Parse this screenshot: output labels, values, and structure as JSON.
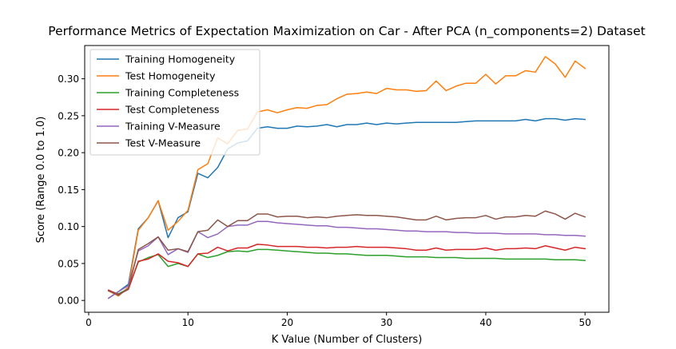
{
  "chart_data": {
    "type": "line",
    "title": "Performance Metrics of Expectation Maximization on Car - After PCA (n_components=2) Dataset",
    "xlabel": "K Value (Number of Clusters)",
    "ylabel": "Score (Range 0.0 to 1.0)",
    "xlim": [
      -0.4,
      52.4
    ],
    "ylim": [
      -0.016,
      0.345
    ],
    "x_ticks": [
      0,
      10,
      20,
      30,
      40,
      50
    ],
    "x_tick_labels": [
      "0",
      "10",
      "20",
      "30",
      "40",
      "50"
    ],
    "y_ticks": [
      0.0,
      0.05,
      0.1,
      0.15,
      0.2,
      0.25,
      0.3
    ],
    "y_tick_labels": [
      "0.00",
      "0.05",
      "0.10",
      "0.15",
      "0.20",
      "0.25",
      "0.30"
    ],
    "grid": false,
    "legend_position": "top-left",
    "x": [
      2,
      3,
      4,
      5,
      6,
      7,
      8,
      9,
      10,
      11,
      12,
      13,
      14,
      15,
      16,
      17,
      18,
      19,
      20,
      21,
      22,
      23,
      24,
      25,
      26,
      27,
      28,
      29,
      30,
      31,
      32,
      33,
      34,
      35,
      36,
      37,
      38,
      39,
      40,
      41,
      42,
      43,
      44,
      45,
      46,
      47,
      48,
      49,
      50
    ],
    "series": [
      {
        "name": "Training Homogeneity",
        "color": "#1f77b4",
        "values": [
          0.003,
          0.012,
          0.022,
          0.097,
          0.112,
          0.135,
          0.085,
          0.112,
          0.12,
          0.172,
          0.166,
          0.18,
          0.205,
          0.213,
          0.216,
          0.233,
          0.235,
          0.233,
          0.233,
          0.236,
          0.235,
          0.236,
          0.238,
          0.235,
          0.238,
          0.238,
          0.24,
          0.238,
          0.24,
          0.239,
          0.24,
          0.241,
          0.241,
          0.241,
          0.241,
          0.241,
          0.242,
          0.243,
          0.243,
          0.243,
          0.243,
          0.243,
          0.245,
          0.243,
          0.246,
          0.246,
          0.244,
          0.246,
          0.245
        ]
      },
      {
        "name": "Test Homogeneity",
        "color": "#ff7f0e",
        "values": [
          0.013,
          0.006,
          0.018,
          0.095,
          0.112,
          0.135,
          0.095,
          0.107,
          0.122,
          0.177,
          0.185,
          0.22,
          0.212,
          0.23,
          0.232,
          0.255,
          0.258,
          0.254,
          0.258,
          0.261,
          0.26,
          0.264,
          0.265,
          0.273,
          0.279,
          0.28,
          0.282,
          0.28,
          0.287,
          0.285,
          0.285,
          0.283,
          0.284,
          0.297,
          0.284,
          0.29,
          0.294,
          0.294,
          0.306,
          0.293,
          0.304,
          0.304,
          0.311,
          0.309,
          0.33,
          0.32,
          0.302,
          0.324,
          0.314
        ]
      },
      {
        "name": "Training Completeness",
        "color": "#2ca02c",
        "values": [
          0.013,
          0.009,
          0.016,
          0.052,
          0.058,
          0.062,
          0.046,
          0.05,
          0.046,
          0.063,
          0.058,
          0.061,
          0.066,
          0.067,
          0.066,
          0.069,
          0.069,
          0.068,
          0.067,
          0.066,
          0.065,
          0.064,
          0.064,
          0.063,
          0.063,
          0.062,
          0.061,
          0.061,
          0.061,
          0.06,
          0.059,
          0.059,
          0.059,
          0.058,
          0.058,
          0.058,
          0.057,
          0.057,
          0.057,
          0.057,
          0.056,
          0.056,
          0.056,
          0.056,
          0.056,
          0.055,
          0.055,
          0.055,
          0.054
        ]
      },
      {
        "name": "Test Completeness",
        "color": "#d62728",
        "values": [
          0.014,
          0.008,
          0.015,
          0.053,
          0.056,
          0.063,
          0.053,
          0.051,
          0.046,
          0.063,
          0.064,
          0.072,
          0.067,
          0.071,
          0.071,
          0.076,
          0.075,
          0.073,
          0.073,
          0.073,
          0.072,
          0.072,
          0.071,
          0.072,
          0.072,
          0.073,
          0.072,
          0.072,
          0.072,
          0.071,
          0.07,
          0.068,
          0.068,
          0.071,
          0.068,
          0.069,
          0.069,
          0.069,
          0.071,
          0.068,
          0.07,
          0.07,
          0.071,
          0.07,
          0.074,
          0.071,
          0.068,
          0.072,
          0.07
        ]
      },
      {
        "name": "Training V-Measure",
        "color": "#9467bd",
        "values": [
          0.003,
          0.012,
          0.02,
          0.067,
          0.074,
          0.086,
          0.062,
          0.07,
          0.065,
          0.093,
          0.085,
          0.09,
          0.1,
          0.102,
          0.102,
          0.107,
          0.107,
          0.105,
          0.104,
          0.103,
          0.102,
          0.101,
          0.101,
          0.099,
          0.099,
          0.098,
          0.097,
          0.097,
          0.096,
          0.095,
          0.094,
          0.094,
          0.093,
          0.093,
          0.093,
          0.092,
          0.092,
          0.091,
          0.091,
          0.091,
          0.09,
          0.09,
          0.09,
          0.09,
          0.089,
          0.089,
          0.088,
          0.088,
          0.087
        ]
      },
      {
        "name": "Test V-Measure",
        "color": "#8c564b",
        "values": [
          0.013,
          0.007,
          0.016,
          0.069,
          0.077,
          0.086,
          0.068,
          0.07,
          0.066,
          0.093,
          0.095,
          0.109,
          0.1,
          0.108,
          0.108,
          0.117,
          0.117,
          0.113,
          0.114,
          0.114,
          0.112,
          0.113,
          0.112,
          0.114,
          0.115,
          0.116,
          0.115,
          0.115,
          0.114,
          0.113,
          0.111,
          0.109,
          0.109,
          0.114,
          0.109,
          0.111,
          0.112,
          0.112,
          0.115,
          0.11,
          0.113,
          0.113,
          0.115,
          0.114,
          0.121,
          0.117,
          0.11,
          0.118,
          0.113
        ]
      }
    ]
  }
}
